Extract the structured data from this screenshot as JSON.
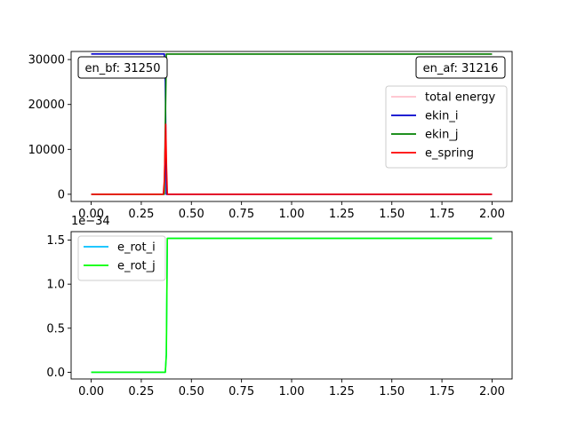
{
  "chart_data": [
    {
      "type": "line",
      "xlim": [
        -0.1,
        2.1
      ],
      "ylim": [
        -1600,
        31800
      ],
      "x_ticks": [
        0.0,
        0.25,
        0.5,
        0.75,
        1.0,
        1.25,
        1.5,
        1.75,
        2.0
      ],
      "x_tick_labels": [
        "0.00",
        "0.25",
        "0.50",
        "0.75",
        "1.00",
        "1.25",
        "1.50",
        "1.75",
        "2.00"
      ],
      "y_ticks": [
        0,
        10000,
        20000,
        30000
      ],
      "y_tick_labels": [
        "0",
        "10000",
        "20000",
        "30000"
      ],
      "legend_position": "center-right",
      "grid": false,
      "annotations": [
        {
          "text": "en_bf: 31250",
          "position": "top-left"
        },
        {
          "text": "en_af: 31216",
          "position": "top-right"
        }
      ],
      "series": [
        {
          "name": "total energy",
          "color": "#ffc0cb",
          "x": [
            0.0,
            2.0
          ],
          "y": [
            31250,
            31250
          ]
        },
        {
          "name": "ekin_i",
          "color": "#0000cd",
          "x": [
            0.0,
            0.365,
            0.37,
            0.375,
            0.38,
            2.0
          ],
          "y": [
            31250,
            31250,
            25000,
            0,
            0,
            0
          ]
        },
        {
          "name": "ekin_j",
          "color": "#008000",
          "x": [
            0.0,
            0.365,
            0.37,
            0.375,
            0.38,
            2.0
          ],
          "y": [
            0,
            0,
            15600,
            31216,
            31216,
            31216
          ]
        },
        {
          "name": "e_spring",
          "color": "#ff0000",
          "x": [
            0.0,
            0.36,
            0.365,
            0.372,
            0.376,
            0.38,
            2.0
          ],
          "y": [
            0,
            0,
            3000,
            15600,
            6000,
            0,
            0
          ]
        }
      ]
    },
    {
      "type": "line",
      "xlim": [
        -0.1,
        2.1
      ],
      "ylim": [
        -0.076,
        1.596
      ],
      "offset_text": "1e−34",
      "x_ticks": [
        0.0,
        0.25,
        0.5,
        0.75,
        1.0,
        1.25,
        1.5,
        1.75,
        2.0
      ],
      "x_tick_labels": [
        "0.00",
        "0.25",
        "0.50",
        "0.75",
        "1.00",
        "1.25",
        "1.50",
        "1.75",
        "2.00"
      ],
      "y_ticks": [
        0.0,
        0.5,
        1.0,
        1.5
      ],
      "y_tick_labels": [
        "0.0",
        "0.5",
        "1.0",
        "1.5"
      ],
      "legend_position": "top-left",
      "grid": false,
      "series": [
        {
          "name": "e_rot_i",
          "color": "#00bfff",
          "x": [
            0.0,
            0.37,
            0.375,
            0.38,
            2.0
          ],
          "y": [
            0,
            0,
            0.2,
            1.52,
            1.52
          ]
        },
        {
          "name": "e_rot_j",
          "color": "#00ff00",
          "x": [
            0.0,
            0.37,
            0.375,
            0.38,
            2.0
          ],
          "y": [
            0,
            0,
            0.2,
            1.52,
            1.52
          ]
        }
      ]
    }
  ]
}
